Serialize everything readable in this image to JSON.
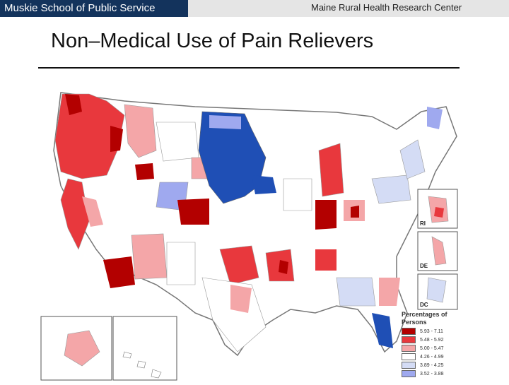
{
  "header": {
    "org": "Muskie School of Public Service",
    "center": "Maine Rural Health Research Center"
  },
  "slide": {
    "title": "Non–Medical Use of Pain Relievers"
  },
  "map": {
    "legend_title_line1": "Percentages of",
    "legend_title_line2": "Persons",
    "legend": [
      {
        "label": "5.93 - 7.11",
        "color": "#b30000"
      },
      {
        "label": "5.48 - 5.92",
        "color": "#e8383d"
      },
      {
        "label": "5.00 - 5.47",
        "color": "#f4a6a8"
      },
      {
        "label": "4.26 - 4.99",
        "color": "#ffffff"
      },
      {
        "label": "3.89 - 4.25",
        "color": "#d4dcf5"
      },
      {
        "label": "3.52 - 3.88",
        "color": "#9fa9ef"
      }
    ],
    "insets": {
      "ri": "RI",
      "de": "DE",
      "dc": "DC"
    },
    "colors": {
      "dark_red": "#b30000",
      "red": "#e8383d",
      "pink": "#f4a6a8",
      "white": "#ffffff",
      "light_blue": "#d4dcf5",
      "blue": "#9fa9ef",
      "dark_blue": "#1f4fb5"
    }
  }
}
